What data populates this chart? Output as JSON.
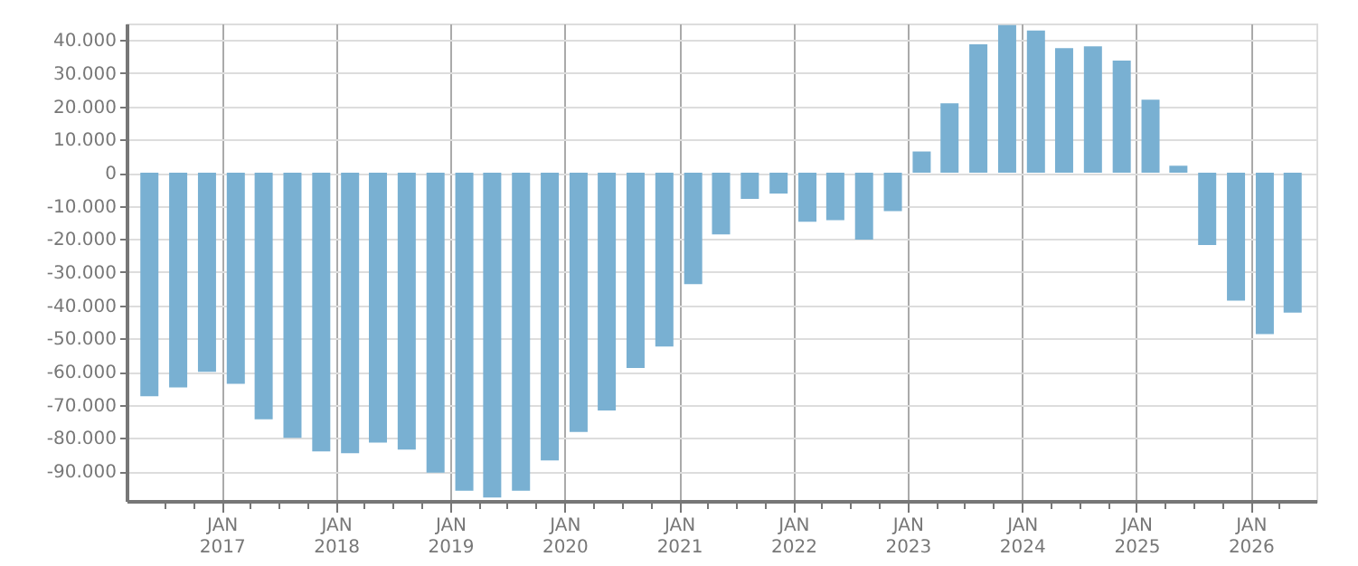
{
  "chart_data": {
    "type": "bar",
    "x": [
      "2016-05-15",
      "2016-08-15",
      "2016-11-15",
      "2017-02-15",
      "2017-05-15",
      "2017-08-15",
      "2017-11-15",
      "2018-02-15",
      "2018-05-15",
      "2018-08-15",
      "2018-11-15",
      "2019-02-15",
      "2019-05-15",
      "2019-08-15",
      "2019-11-15",
      "2020-02-15",
      "2020-05-15",
      "2020-08-15",
      "2020-11-15",
      "2021-02-15",
      "2021-05-15",
      "2021-08-15",
      "2021-11-15",
      "2022-02-15",
      "2022-05-15",
      "2022-08-15",
      "2022-11-15",
      "2023-02-15",
      "2023-05-15",
      "2023-08-15",
      "2023-11-15",
      "2024-02-15",
      "2024-05-15",
      "2024-08-15",
      "2024-11-15",
      "2025-02-15",
      "2025-05-15",
      "2025-08-15",
      "2025-11-15",
      "2026-02-15",
      "2026-05-15"
    ],
    "series": [
      {
        "color": "#79b0d2",
        "values": [
          -67400,
          -64800,
          -60100,
          -63700,
          -74400,
          -80000,
          -84100,
          -84600,
          -81400,
          -83500,
          -90500,
          -95900,
          -98000,
          -95900,
          -86800,
          -78200,
          -71700,
          -58900,
          -52400,
          -33600,
          -18600,
          -7900,
          -6300,
          -14800,
          -14300,
          -20200,
          -11600,
          6400,
          20900,
          38700,
          44500,
          42900,
          37600,
          38100,
          33800,
          22000,
          2100,
          -21800,
          -38600,
          -48700,
          -42200
        ]
      }
    ],
    "xlim": [
      "2016-04-01",
      "2026-07-01"
    ],
    "xticks": [
      {
        "value": "2016-07-01",
        "label": null
      },
      {
        "value": "2016-10-01",
        "label": null
      },
      {
        "value": "2017-01-01",
        "label": "JAN 2017"
      },
      {
        "value": "2017-04-01",
        "label": null
      },
      {
        "value": "2017-07-01",
        "label": null
      },
      {
        "value": "2017-10-01",
        "label": null
      },
      {
        "value": "2018-01-01",
        "label": "JAN 2018"
      },
      {
        "value": "2018-04-01",
        "label": null
      },
      {
        "value": "2018-07-01",
        "label": null
      },
      {
        "value": "2018-10-01",
        "label": null
      },
      {
        "value": "2019-01-01",
        "label": "JAN 2019"
      },
      {
        "value": "2019-04-01",
        "label": null
      },
      {
        "value": "2019-07-01",
        "label": null
      },
      {
        "value": "2019-10-01",
        "label": null
      },
      {
        "value": "2020-01-01",
        "label": "JAN 2020"
      },
      {
        "value": "2020-04-01",
        "label": null
      },
      {
        "value": "2020-07-01",
        "label": null
      },
      {
        "value": "2020-10-01",
        "label": null
      },
      {
        "value": "2021-01-01",
        "label": "JAN 2021"
      },
      {
        "value": "2021-04-01",
        "label": null
      },
      {
        "value": "2021-07-01",
        "label": null
      },
      {
        "value": "2021-10-01",
        "label": null
      },
      {
        "value": "2022-01-01",
        "label": "JAN 2022"
      },
      {
        "value": "2022-04-01",
        "label": null
      },
      {
        "value": "2022-07-01",
        "label": null
      },
      {
        "value": "2022-10-01",
        "label": null
      },
      {
        "value": "2023-01-01",
        "label": "JAN 2023"
      },
      {
        "value": "2023-04-01",
        "label": null
      },
      {
        "value": "2023-07-01",
        "label": null
      },
      {
        "value": "2023-10-01",
        "label": null
      },
      {
        "value": "2024-01-01",
        "label": "JAN 2024"
      },
      {
        "value": "2024-04-01",
        "label": null
      },
      {
        "value": "2024-07-01",
        "label": null
      },
      {
        "value": "2024-10-01",
        "label": null
      },
      {
        "value": "2025-01-01",
        "label": "JAN 2025"
      },
      {
        "value": "2025-04-01",
        "label": null
      },
      {
        "value": "2025-07-01",
        "label": null
      },
      {
        "value": "2025-10-01",
        "label": null
      },
      {
        "value": "2026-01-01",
        "label": "JAN 2026"
      },
      {
        "value": "2026-04-01",
        "label": null
      }
    ],
    "ylim": [
      -99000,
      45000
    ],
    "yticks": [
      {
        "value": -90000,
        "label": "-90.000"
      },
      {
        "value": -80000,
        "label": "-80.000"
      },
      {
        "value": -70000,
        "label": "-70.000"
      },
      {
        "value": -60000,
        "label": "-60.000"
      },
      {
        "value": -50000,
        "label": "-50.000"
      },
      {
        "value": -40000,
        "label": "-40.000"
      },
      {
        "value": -30000,
        "label": "-30.000"
      },
      {
        "value": -20000,
        "label": "-20.000"
      },
      {
        "value": -10000,
        "label": "-10.000"
      },
      {
        "value": 0,
        "label": "0"
      },
      {
        "value": 10000,
        "label": "10.000"
      },
      {
        "value": 20000,
        "label": "20.000"
      },
      {
        "value": 30000,
        "label": "30.000"
      },
      {
        "value": 40000,
        "label": "40.000"
      }
    ],
    "grid": true
  }
}
